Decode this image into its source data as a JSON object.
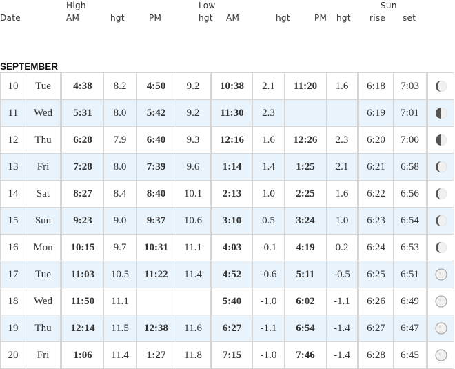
{
  "header": {
    "high": "High",
    "low": "Low",
    "sun": "Sun",
    "date": "Date",
    "am": "AM",
    "hgt": "hgt",
    "pm": "PM",
    "rise": "rise",
    "set": "set"
  },
  "month": "SEPTEMBER",
  "rows": [
    {
      "date": "10",
      "day": "Tue",
      "high_am": "4:38",
      "high_am_hgt": "8.2",
      "high_pm": "4:50",
      "high_pm_hgt": "9.2",
      "low_am": "10:38",
      "low_am_hgt": "2.1",
      "low_pm": "11:20",
      "low_pm_hgt": "1.6",
      "rise": "6:18",
      "set": "7:03",
      "moon": "waxing-gibbous-moon-icon"
    },
    {
      "date": "11",
      "day": "Wed",
      "high_am": "5:31",
      "high_am_hgt": "8.0",
      "high_pm": "5:42",
      "high_pm_hgt": "9.2",
      "low_am": "11:30",
      "low_am_hgt": "2.3",
      "low_pm": "",
      "low_pm_hgt": "",
      "rise": "6:19",
      "set": "7:01",
      "moon": "first-quarter-moon-icon"
    },
    {
      "date": "12",
      "day": "Thu",
      "high_am": "6:28",
      "high_am_hgt": "7.9",
      "high_pm": "6:40",
      "high_pm_hgt": "9.3",
      "low_am": "12:16",
      "low_am_hgt": "1.6",
      "low_pm": "12:26",
      "low_pm_hgt": "2.3",
      "rise": "6:20",
      "set": "7:00",
      "moon": "first-quarter-moon-icon"
    },
    {
      "date": "13",
      "day": "Fri",
      "high_am": "7:28",
      "high_am_hgt": "8.0",
      "high_pm": "7:39",
      "high_pm_hgt": "9.6",
      "low_am": "1:14",
      "low_am_hgt": "1.4",
      "low_pm": "1:25",
      "low_pm_hgt": "2.1",
      "rise": "6:21",
      "set": "6:58",
      "moon": "waxing-gibbous-moon-icon"
    },
    {
      "date": "14",
      "day": "Sat",
      "high_am": "8:27",
      "high_am_hgt": "8.4",
      "high_pm": "8:40",
      "high_pm_hgt": "10.1",
      "low_am": "2:13",
      "low_am_hgt": "1.0",
      "low_pm": "2:25",
      "low_pm_hgt": "1.6",
      "rise": "6:22",
      "set": "6:56",
      "moon": "waxing-gibbous-moon-icon"
    },
    {
      "date": "15",
      "day": "Sun",
      "high_am": "9:23",
      "high_am_hgt": "9.0",
      "high_pm": "9:37",
      "high_pm_hgt": "10.6",
      "low_am": "3:10",
      "low_am_hgt": "0.5",
      "low_pm": "3:24",
      "low_pm_hgt": "1.0",
      "rise": "6:23",
      "set": "6:54",
      "moon": "waxing-gibbous-moon-icon"
    },
    {
      "date": "16",
      "day": "Mon",
      "high_am": "10:15",
      "high_am_hgt": "9.7",
      "high_pm": "10:31",
      "high_pm_hgt": "11.1",
      "low_am": "4:03",
      "low_am_hgt": "-0.1",
      "low_pm": "4:19",
      "low_pm_hgt": "0.2",
      "rise": "6:24",
      "set": "6:53",
      "moon": "waxing-gibbous-moon-icon"
    },
    {
      "date": "17",
      "day": "Tue",
      "high_am": "11:03",
      "high_am_hgt": "10.5",
      "high_pm": "11:22",
      "high_pm_hgt": "11.4",
      "low_am": "4:52",
      "low_am_hgt": "-0.6",
      "low_pm": "5:11",
      "low_pm_hgt": "-0.5",
      "rise": "6:25",
      "set": "6:51",
      "moon": "full-moon-icon"
    },
    {
      "date": "18",
      "day": "Wed",
      "high_am": "11:50",
      "high_am_hgt": "11.1",
      "high_pm": "",
      "high_pm_hgt": "",
      "low_am": "5:40",
      "low_am_hgt": "-1.0",
      "low_pm": "6:02",
      "low_pm_hgt": "-1.1",
      "rise": "6:26",
      "set": "6:49",
      "moon": "full-moon-icon"
    },
    {
      "date": "19",
      "day": "Thu",
      "high_am": "12:14",
      "high_am_hgt": "11.5",
      "high_pm": "12:38",
      "high_pm_hgt": "11.6",
      "low_am": "6:27",
      "low_am_hgt": "-1.1",
      "low_pm": "6:54",
      "low_pm_hgt": "-1.4",
      "rise": "6:27",
      "set": "6:47",
      "moon": "full-moon-icon"
    },
    {
      "date": "20",
      "day": "Fri",
      "high_am": "1:06",
      "high_am_hgt": "11.4",
      "high_pm": "1:27",
      "high_pm_hgt": "11.8",
      "low_am": "7:15",
      "low_am_hgt": "-1.0",
      "low_pm": "7:46",
      "low_pm_hgt": "-1.4",
      "rise": "6:28",
      "set": "6:45",
      "moon": "full-moon-icon"
    }
  ],
  "colors": {
    "row_alt": "#e8f3fb",
    "border": "#d6d6d6",
    "text": "#333333",
    "moon_dark": "#555555",
    "moon_light": "#f0f0f0"
  }
}
